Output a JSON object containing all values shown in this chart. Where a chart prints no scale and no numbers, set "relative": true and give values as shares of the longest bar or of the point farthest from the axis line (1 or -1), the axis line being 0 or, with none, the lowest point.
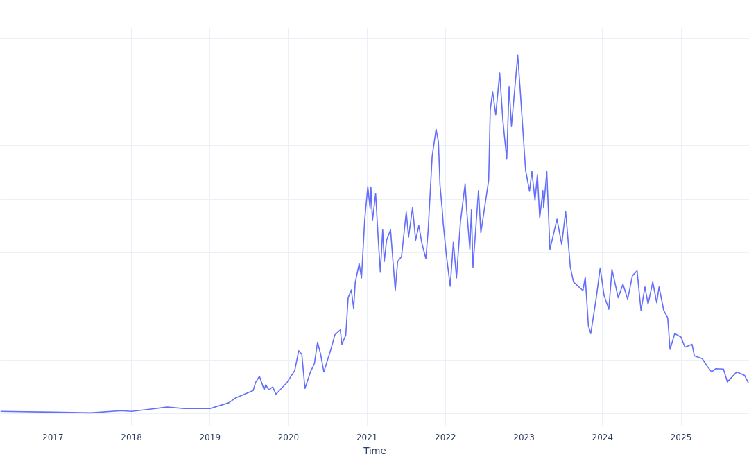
{
  "chart_data": {
    "type": "line",
    "xlabel": "Time",
    "relative": true,
    "grid": true,
    "xlim": [
      2016.33,
      2025.87
    ],
    "xticks": [
      2017,
      2018,
      2019,
      2020,
      2021,
      2022,
      2023,
      2024,
      2025
    ],
    "series": [
      {
        "color": "#636efa",
        "x": [
          2016.33,
          2017.0,
          2017.48,
          2017.87,
          2018.0,
          2018.23,
          2018.45,
          2018.67,
          2019.0,
          2019.24,
          2019.33,
          2019.55,
          2019.58,
          2019.63,
          2019.69,
          2019.71,
          2019.75,
          2019.8,
          2019.84,
          2019.98,
          2020.08,
          2020.13,
          2020.17,
          2020.21,
          2020.28,
          2020.33,
          2020.37,
          2020.41,
          2020.45,
          2020.54,
          2020.59,
          2020.66,
          2020.68,
          2020.73,
          2020.76,
          2020.8,
          2020.83,
          2020.85,
          2020.9,
          2020.93,
          2020.97,
          2021.01,
          2021.04,
          2021.05,
          2021.07,
          2021.11,
          2021.14,
          2021.17,
          2021.2,
          2021.22,
          2021.25,
          2021.3,
          2021.36,
          2021.39,
          2021.44,
          2021.5,
          2021.53,
          2021.58,
          2021.62,
          2021.66,
          2021.7,
          2021.75,
          2021.78,
          2021.83,
          2021.88,
          2021.91,
          2021.93,
          2021.96,
          2021.97,
          2022.01,
          2022.06,
          2022.1,
          2022.14,
          2022.19,
          2022.25,
          2022.27,
          2022.31,
          2022.33,
          2022.35,
          2022.42,
          2022.45,
          2022.55,
          2022.57,
          2022.6,
          2022.64,
          2022.69,
          2022.73,
          2022.78,
          2022.81,
          2022.84,
          2022.92,
          2022.95,
          2023.02,
          2023.07,
          2023.1,
          2023.14,
          2023.17,
          2023.2,
          2023.24,
          2023.25,
          2023.29,
          2023.33,
          2023.42,
          2023.48,
          2023.53,
          2023.59,
          2023.63,
          2023.75,
          2023.78,
          2023.82,
          2023.85,
          2023.92,
          2023.97,
          2024.02,
          2024.08,
          2024.12,
          2024.2,
          2024.26,
          2024.32,
          2024.38,
          2024.44,
          2024.49,
          2024.54,
          2024.58,
          2024.64,
          2024.69,
          2024.72,
          2024.78,
          2024.83,
          2024.86,
          2024.92,
          2025.0,
          2025.05,
          2025.14,
          2025.17,
          2025.27,
          2025.33,
          2025.39,
          2025.44,
          2025.54,
          2025.59,
          2025.71,
          2025.81,
          2025.86
        ],
        "values": [
          0.006,
          0.004,
          0.002,
          0.008,
          0.006,
          0.012,
          0.018,
          0.014,
          0.014,
          0.03,
          0.044,
          0.064,
          0.086,
          0.104,
          0.066,
          0.08,
          0.066,
          0.074,
          0.054,
          0.086,
          0.12,
          0.175,
          0.165,
          0.07,
          0.116,
          0.139,
          0.199,
          0.165,
          0.116,
          0.179,
          0.219,
          0.233,
          0.193,
          0.219,
          0.323,
          0.345,
          0.293,
          0.365,
          0.418,
          0.378,
          0.538,
          0.633,
          0.572,
          0.631,
          0.538,
          0.614,
          0.498,
          0.394,
          0.512,
          0.424,
          0.484,
          0.512,
          0.343,
          0.424,
          0.438,
          0.562,
          0.492,
          0.574,
          0.484,
          0.524,
          0.474,
          0.432,
          0.514,
          0.717,
          0.793,
          0.757,
          0.637,
          0.564,
          0.532,
          0.444,
          0.355,
          0.478,
          0.378,
          0.534,
          0.641,
          0.568,
          0.458,
          0.568,
          0.408,
          0.622,
          0.504,
          0.651,
          0.847,
          0.898,
          0.833,
          0.95,
          0.819,
          0.709,
          0.912,
          0.801,
          1.0,
          0.906,
          0.679,
          0.62,
          0.675,
          0.594,
          0.667,
          0.546,
          0.622,
          0.574,
          0.675,
          0.458,
          0.542,
          0.472,
          0.564,
          0.408,
          0.367,
          0.343,
          0.38,
          0.245,
          0.223,
          0.323,
          0.406,
          0.329,
          0.291,
          0.402,
          0.323,
          0.361,
          0.319,
          0.384,
          0.398,
          0.287,
          0.353,
          0.305,
          0.367,
          0.309,
          0.353,
          0.287,
          0.267,
          0.179,
          0.223,
          0.213,
          0.185,
          0.193,
          0.161,
          0.153,
          0.133,
          0.116,
          0.125,
          0.124,
          0.088,
          0.116,
          0.106,
          0.084
        ]
      }
    ]
  }
}
